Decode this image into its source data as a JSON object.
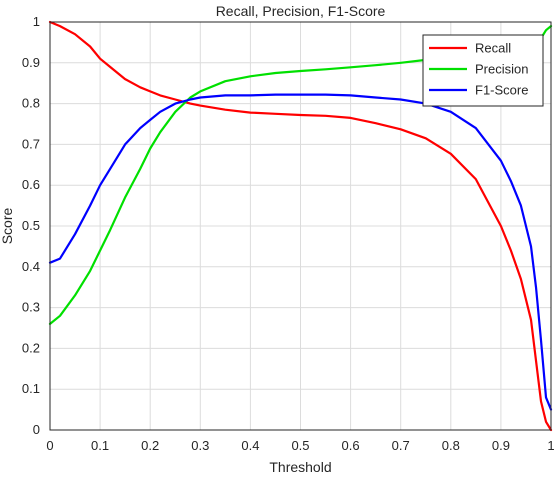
{
  "chart_data": {
    "type": "line",
    "title": "Recall, Precision, F1-Score",
    "xlabel": "Threshold",
    "ylabel": "Score",
    "xlim": [
      0,
      1
    ],
    "ylim": [
      0,
      1
    ],
    "grid": true,
    "legend_position": "top-right",
    "x_ticks": [
      "0",
      "0.1",
      "0.2",
      "0.3",
      "0.4",
      "0.5",
      "0.6",
      "0.7",
      "0.8",
      "0.9",
      "1"
    ],
    "y_ticks": [
      "0",
      "0.1",
      "0.2",
      "0.3",
      "0.4",
      "0.5",
      "0.6",
      "0.7",
      "0.8",
      "0.9",
      "1"
    ],
    "x": [
      0,
      0.02,
      0.05,
      0.08,
      0.1,
      0.12,
      0.15,
      0.18,
      0.2,
      0.22,
      0.25,
      0.28,
      0.3,
      0.35,
      0.4,
      0.45,
      0.5,
      0.55,
      0.6,
      0.65,
      0.7,
      0.75,
      0.8,
      0.85,
      0.9,
      0.92,
      0.94,
      0.96,
      0.97,
      0.98,
      0.99,
      1.0
    ],
    "series": [
      {
        "name": "Recall",
        "color": "#ff0000",
        "values": [
          1.0,
          0.99,
          0.97,
          0.94,
          0.91,
          0.89,
          0.86,
          0.84,
          0.83,
          0.82,
          0.81,
          0.8,
          0.795,
          0.785,
          0.778,
          0.775,
          0.772,
          0.77,
          0.765,
          0.752,
          0.737,
          0.715,
          0.677,
          0.615,
          0.5,
          0.44,
          0.37,
          0.27,
          0.17,
          0.07,
          0.02,
          0.0
        ]
      },
      {
        "name": "Precision",
        "color": "#00e000",
        "values": [
          0.26,
          0.28,
          0.33,
          0.39,
          0.44,
          0.49,
          0.57,
          0.64,
          0.69,
          0.73,
          0.78,
          0.815,
          0.83,
          0.855,
          0.867,
          0.875,
          0.88,
          0.884,
          0.889,
          0.894,
          0.9,
          0.907,
          0.915,
          0.92,
          0.93,
          0.935,
          0.94,
          0.95,
          0.955,
          0.96,
          0.98,
          0.99
        ]
      },
      {
        "name": "F1-Score",
        "color": "#0000ff",
        "values": [
          0.41,
          0.42,
          0.48,
          0.55,
          0.6,
          0.64,
          0.7,
          0.74,
          0.76,
          0.78,
          0.8,
          0.81,
          0.815,
          0.82,
          0.82,
          0.822,
          0.822,
          0.822,
          0.82,
          0.815,
          0.81,
          0.8,
          0.78,
          0.74,
          0.66,
          0.61,
          0.55,
          0.45,
          0.35,
          0.22,
          0.08,
          0.05
        ]
      }
    ]
  }
}
